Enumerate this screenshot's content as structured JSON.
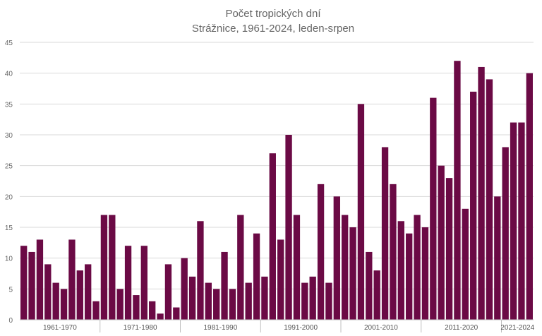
{
  "chart_data": {
    "type": "bar",
    "title": "Počet tropických dní",
    "subtitle": "Strážnice, 1961-2024, leden-srpen",
    "xlabel": "",
    "ylabel": "",
    "ylim": [
      0,
      45
    ],
    "yticks": [
      "0",
      "5",
      "10",
      "15",
      "20",
      "25",
      "30",
      "35",
      "40",
      "45"
    ],
    "grid": "horizontal",
    "bar_color": "#6b0a45",
    "years": [
      1961,
      1962,
      1963,
      1964,
      1965,
      1966,
      1967,
      1968,
      1969,
      1970,
      1971,
      1972,
      1973,
      1974,
      1975,
      1976,
      1977,
      1978,
      1979,
      1980,
      1981,
      1982,
      1983,
      1984,
      1985,
      1986,
      1987,
      1988,
      1989,
      1990,
      1991,
      1992,
      1993,
      1994,
      1995,
      1996,
      1997,
      1998,
      1999,
      2000,
      2001,
      2002,
      2003,
      2004,
      2005,
      2006,
      2007,
      2008,
      2009,
      2010,
      2011,
      2012,
      2013,
      2014,
      2015,
      2016,
      2017,
      2018,
      2019,
      2020,
      2021,
      2022,
      2023,
      2024
    ],
    "values": [
      12,
      11,
      13,
      9,
      6,
      5,
      13,
      8,
      9,
      3,
      17,
      17,
      5,
      12,
      4,
      12,
      3,
      1,
      9,
      2,
      10,
      7,
      16,
      6,
      5,
      11,
      5,
      17,
      6,
      14,
      7,
      27,
      13,
      30,
      17,
      6,
      7,
      22,
      6,
      20,
      17,
      15,
      35,
      11,
      8,
      28,
      22,
      16,
      14,
      17,
      15,
      36,
      25,
      23,
      42,
      18,
      37,
      41,
      39,
      20,
      28,
      32,
      32,
      40
    ],
    "decade_groups": [
      {
        "label": "1961-1970",
        "count": 10
      },
      {
        "label": "1971-1980",
        "count": 10
      },
      {
        "label": "1981-1990",
        "count": 10
      },
      {
        "label": "1991-2000",
        "count": 10
      },
      {
        "label": "2001-2010",
        "count": 10
      },
      {
        "label": "2011-2020",
        "count": 10
      },
      {
        "label": "2021-2024",
        "count": 4
      }
    ]
  }
}
